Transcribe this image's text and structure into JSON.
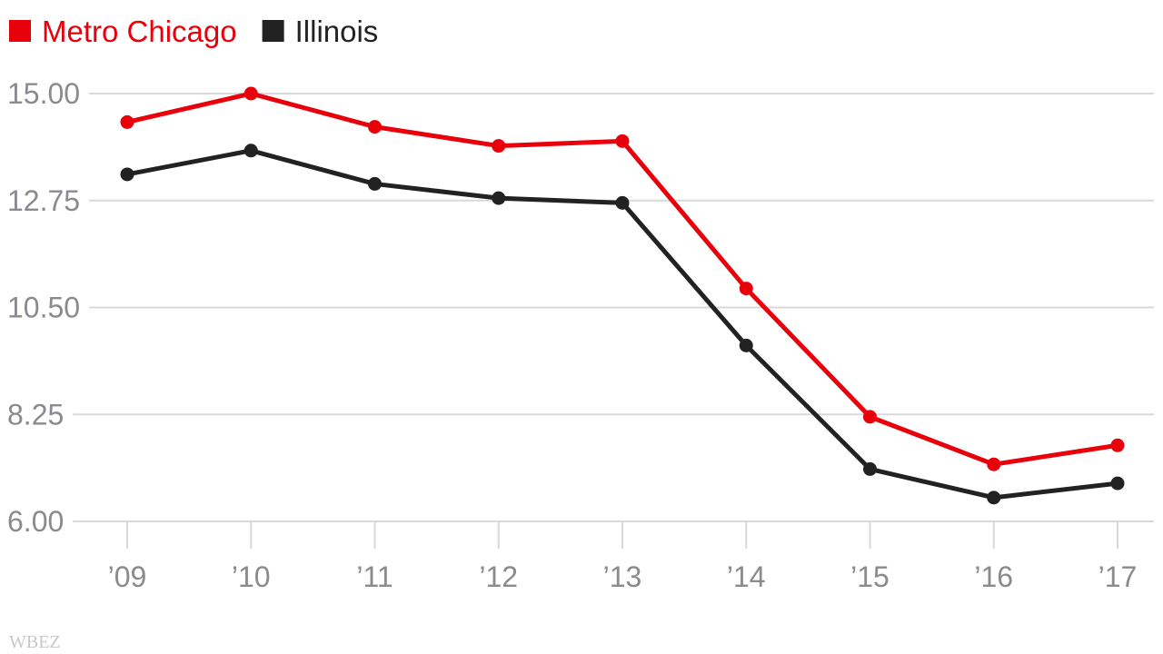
{
  "chart_data": {
    "type": "line",
    "title": "",
    "xlabel": "",
    "ylabel": "",
    "categories": [
      "’09",
      "’10",
      "’11",
      "’12",
      "’13",
      "’14",
      "’15",
      "’16",
      "’17"
    ],
    "ylim": [
      6.0,
      15.0
    ],
    "yticks": [
      "15.00",
      "12.75",
      "10.50",
      "8.25",
      "6.00"
    ],
    "ytick_values": [
      15.0,
      12.75,
      10.5,
      8.25,
      6.0
    ],
    "grid": true,
    "legend_position": "top-left",
    "series": [
      {
        "name": "Metro Chicago",
        "color": "#e8000b",
        "values": [
          14.4,
          15.0,
          14.3,
          13.9,
          14.0,
          10.9,
          8.2,
          7.2,
          7.6
        ]
      },
      {
        "name": "Illinois",
        "color": "#222222",
        "values": [
          13.3,
          13.8,
          13.1,
          12.8,
          12.7,
          9.7,
          7.1,
          6.5,
          6.8
        ]
      }
    ]
  },
  "credit": "WBEZ"
}
